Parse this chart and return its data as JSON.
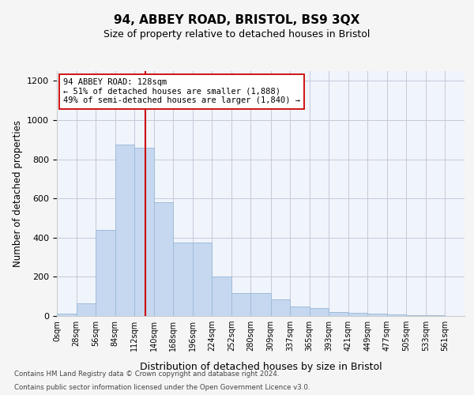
{
  "title": "94, ABBEY ROAD, BRISTOL, BS9 3QX",
  "subtitle": "Size of property relative to detached houses in Bristol",
  "xlabel": "Distribution of detached houses by size in Bristol",
  "ylabel": "Number of detached properties",
  "bar_color": "#c5d8f0",
  "bar_edgecolor": "#a0bcd8",
  "vline_x": 128,
  "vline_color": "#cc0000",
  "annotation_lines": [
    "94 ABBEY ROAD: 128sqm",
    "← 51% of detached houses are smaller (1,888)",
    "49% of semi-detached houses are larger (1,840) →"
  ],
  "annotation_box_color": "#ffffff",
  "annotation_box_edgecolor": "#cc0000",
  "bin_edges": [
    0,
    28,
    56,
    84,
    112,
    140,
    168,
    196,
    224,
    252,
    280,
    309,
    337,
    365,
    393,
    421,
    449,
    477,
    505,
    533,
    561,
    589
  ],
  "bin_labels": [
    "0sqm",
    "28sqm",
    "56sqm",
    "84sqm",
    "112sqm",
    "140sqm",
    "168sqm",
    "196sqm",
    "224sqm",
    "252sqm",
    "280sqm",
    "309sqm",
    "337sqm",
    "365sqm",
    "393sqm",
    "421sqm",
    "449sqm",
    "477sqm",
    "505sqm",
    "533sqm",
    "561sqm"
  ],
  "values": [
    12,
    65,
    440,
    875,
    860,
    580,
    375,
    375,
    200,
    115,
    115,
    85,
    48,
    42,
    22,
    15,
    12,
    10,
    5,
    3,
    2
  ],
  "ylim": [
    0,
    1250
  ],
  "yticks": [
    0,
    200,
    400,
    600,
    800,
    1000,
    1200
  ],
  "footer_lines": [
    "Contains HM Land Registry data © Crown copyright and database right 2024.",
    "Contains public sector information licensed under the Open Government Licence v3.0."
  ],
  "bg_color": "#f0f4fb",
  "grid_color": "#c8c8d8",
  "fig_bg_color": "#f5f5f5"
}
